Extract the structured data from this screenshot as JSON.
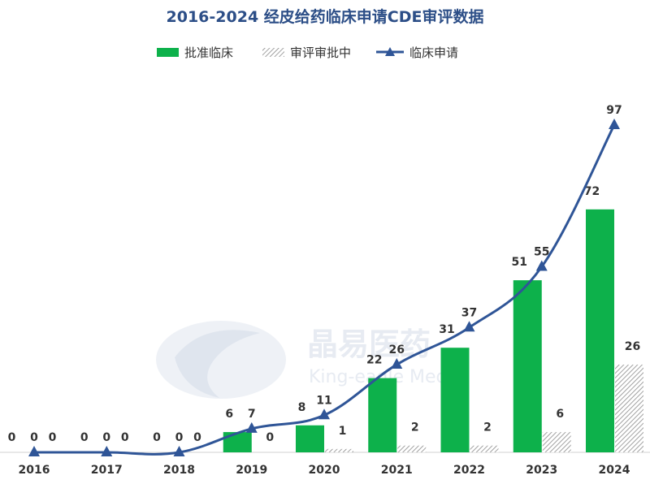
{
  "title": "2016-2024 经皮给药临床申请CDE审评数据",
  "watermark": {
    "name": "晶易医药",
    "sub": "King-eagle Med"
  },
  "colors": {
    "approved": "#0db14b",
    "pending_stroke": "#8a8a8a",
    "line": "#2f5597",
    "title": "#2c4e87"
  },
  "chart_data": {
    "type": "bar",
    "title": "2016-2024 经皮给药临床申请CDE审评数据",
    "categories": [
      "2016",
      "2017",
      "2018",
      "2019",
      "2020",
      "2021",
      "2022",
      "2023",
      "2024"
    ],
    "ylim": [
      0,
      110
    ],
    "legend_position": "top",
    "grid": false,
    "series": [
      {
        "name": "批准临床",
        "type": "bar",
        "pattern": "solid",
        "values": [
          0,
          0,
          0,
          6,
          8,
          22,
          31,
          51,
          72
        ]
      },
      {
        "name": "审评审批中",
        "type": "bar",
        "pattern": "hatched",
        "values": [
          0,
          0,
          0,
          0,
          1,
          2,
          2,
          6,
          26
        ]
      },
      {
        "name": "临床申请",
        "type": "line",
        "marker": "triangle",
        "smooth": true,
        "values": [
          0,
          0,
          0,
          7,
          11,
          26,
          37,
          55,
          97
        ]
      }
    ]
  }
}
